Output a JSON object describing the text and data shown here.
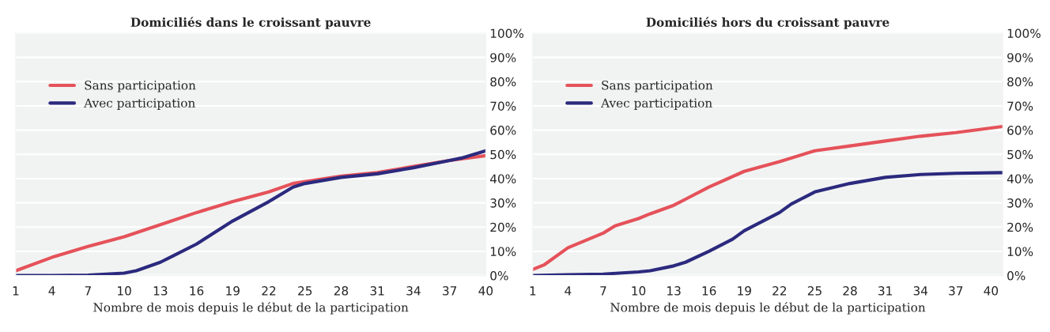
{
  "chart_data": [
    {
      "type": "line",
      "title": "Domiciliés dans le croissant pauvre",
      "xlabel": "Nombre de mois depuis le début de la participation",
      "xlim": [
        1,
        40
      ],
      "xticks": [
        1,
        4,
        7,
        10,
        13,
        16,
        19,
        22,
        25,
        28,
        31,
        34,
        37,
        40
      ],
      "ylim": [
        0,
        100
      ],
      "yticks": [
        {
          "value": 0,
          "label": "0%"
        },
        {
          "value": 10,
          "label": "10%"
        },
        {
          "value": 20,
          "label": "20%"
        },
        {
          "value": 30,
          "label": "30%"
        },
        {
          "value": 40,
          "label": "40%"
        },
        {
          "value": 50,
          "label": "50%"
        },
        {
          "value": 60,
          "label": "60%"
        },
        {
          "value": 70,
          "label": "70%"
        },
        {
          "value": 80,
          "label": "80%"
        },
        {
          "value": 90,
          "label": "90%"
        },
        {
          "value": 100,
          "label": "100%"
        }
      ],
      "grid": "y",
      "legend": "top left",
      "series": [
        {
          "name": "Sans participation",
          "color": "#e5525a",
          "x": [
            1,
            4,
            7,
            10,
            13,
            16,
            19,
            22,
            24,
            28,
            31,
            34,
            37,
            40
          ],
          "values": [
            2,
            7.5,
            12,
            16,
            21,
            26,
            30.5,
            34.5,
            38,
            41,
            42.5,
            45,
            47.5,
            49.5
          ]
        },
        {
          "name": "Avec participation",
          "color": "#2b2a7e",
          "x": [
            1,
            4,
            7,
            10,
            11,
            13,
            14,
            16,
            19,
            22,
            24,
            25,
            28,
            31,
            34,
            37,
            38,
            40
          ],
          "values": [
            0,
            0,
            0.2,
            1,
            2,
            5.5,
            8,
            13,
            22.5,
            30.5,
            36.5,
            38,
            40.5,
            42,
            44.5,
            47.5,
            48.5,
            51.5
          ]
        }
      ]
    },
    {
      "type": "line",
      "title": "Domiciliés hors du croissant pauvre",
      "xlabel": "Nombre de mois depuis le début de la participation",
      "xlim": [
        1,
        41
      ],
      "xticks": [
        1,
        4,
        7,
        10,
        13,
        16,
        19,
        22,
        25,
        28,
        31,
        34,
        37,
        40
      ],
      "ylim": [
        0,
        100
      ],
      "yticks": [
        {
          "value": 0,
          "label": "0%"
        },
        {
          "value": 10,
          "label": "10%"
        },
        {
          "value": 20,
          "label": "20%"
        },
        {
          "value": 30,
          "label": "30%"
        },
        {
          "value": 40,
          "label": "40%"
        },
        {
          "value": 50,
          "label": "50%"
        },
        {
          "value": 60,
          "label": "60%"
        },
        {
          "value": 70,
          "label": "70%"
        },
        {
          "value": 80,
          "label": "80%"
        },
        {
          "value": 90,
          "label": "90%"
        },
        {
          "value": 100,
          "label": "100%"
        }
      ],
      "grid": "y",
      "legend": "top left",
      "series": [
        {
          "name": "Sans participation",
          "color": "#e5525a",
          "x": [
            1,
            2,
            4,
            7,
            8,
            10,
            11,
            13,
            14,
            16,
            19,
            22,
            25,
            28,
            31,
            34,
            37,
            41
          ],
          "values": [
            2.5,
            4.5,
            11.5,
            17.5,
            20.5,
            23.5,
            25.5,
            29,
            31.5,
            36.5,
            43,
            47,
            51.5,
            53.5,
            55.5,
            57.5,
            59,
            61.5
          ]
        },
        {
          "name": "Avec participation",
          "color": "#2b2a7e",
          "x": [
            1,
            4,
            7,
            10,
            11,
            13,
            14,
            16,
            18,
            19,
            22,
            23,
            25,
            28,
            31,
            34,
            37,
            41
          ],
          "values": [
            0,
            0.3,
            0.6,
            1.5,
            2,
            4,
            5.5,
            10,
            15,
            18.5,
            26,
            29.5,
            34.5,
            38,
            40.5,
            41.7,
            42.2,
            42.5
          ]
        }
      ]
    }
  ]
}
